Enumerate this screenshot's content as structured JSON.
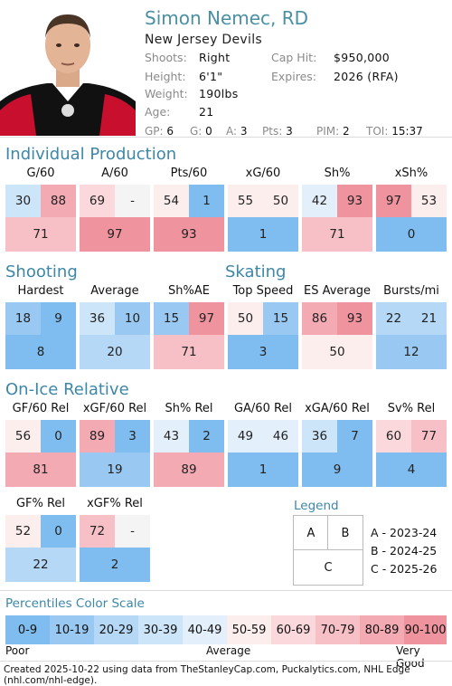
{
  "player": {
    "name": "Simon Nemec, RD",
    "team": "New Jersey Devils",
    "shoots_label": "Shoots:",
    "shoots": "Right",
    "height_label": "Height:",
    "height": "6'1\"",
    "weight_label": "Weight:",
    "weight": "190lbs",
    "age_label": "Age:",
    "age": "21",
    "cap_label": "Cap Hit:",
    "cap": "$950,000",
    "expires_label": "Expires:",
    "expires": "2026 (RFA)"
  },
  "stats": [
    {
      "k": "GP:",
      "v": "6"
    },
    {
      "k": "G:",
      "v": "0"
    },
    {
      "k": "A:",
      "v": "3"
    },
    {
      "k": "Pts:",
      "v": "3"
    },
    {
      "k": "PIM:",
      "v": "2"
    },
    {
      "k": "TOI:",
      "v": "15:37"
    }
  ],
  "sections": {
    "individual": "Individual Production",
    "shooting": "Shooting",
    "skating": "Skating",
    "onice": "On-Ice Relative",
    "legend": "Legend",
    "scale": "Percentiles Color Scale"
  },
  "colors": {
    "c0": "#7fbdf0",
    "c1": "#99c9f2",
    "c2": "#b4d8f6",
    "c3": "#cce5f9",
    "c4": "#e3f0fb",
    "c5": "#fdeeee",
    "c6": "#fbd8dc",
    "c7": "#f7c0c6",
    "c8": "#f3aab2",
    "c9": "#ef949e",
    "na": "#f4f4f4",
    "accent": "#3d87a8"
  },
  "metrics": [
    {
      "id": "g60",
      "label": "G/60",
      "a": "30",
      "b": "88",
      "c": "71"
    },
    {
      "id": "a60",
      "label": "A/60",
      "a": "69",
      "b": "-",
      "c": "97"
    },
    {
      "id": "pts60",
      "label": "Pts/60",
      "a": "54",
      "b": "1",
      "c": "93"
    },
    {
      "id": "xg60",
      "label": "xG/60",
      "a": "55",
      "b": "50",
      "c": "1"
    },
    {
      "id": "shp",
      "label": "Sh%",
      "a": "42",
      "b": "93",
      "c": "71"
    },
    {
      "id": "xshp",
      "label": "xSh%",
      "a": "97",
      "b": "53",
      "c": "0"
    },
    {
      "id": "hardest",
      "label": "Hardest",
      "a": "18",
      "b": "9",
      "c": "8"
    },
    {
      "id": "average",
      "label": "Average",
      "a": "36",
      "b": "10",
      "c": "20"
    },
    {
      "id": "shae",
      "label": "Sh%AE",
      "a": "15",
      "b": "97",
      "c": "71"
    },
    {
      "id": "topspeed",
      "label": "Top Speed",
      "a": "50",
      "b": "15",
      "c": "3"
    },
    {
      "id": "esavg",
      "label": "ES Average",
      "a": "86",
      "b": "93",
      "c": "50"
    },
    {
      "id": "bursts",
      "label": "Bursts/mi",
      "a": "22",
      "b": "21",
      "c": "12"
    },
    {
      "id": "gf60",
      "label": "GF/60 Rel",
      "a": "56",
      "b": "0",
      "c": "81"
    },
    {
      "id": "xgf60",
      "label": "xGF/60 Rel",
      "a": "89",
      "b": "3",
      "c": "19"
    },
    {
      "id": "shrel",
      "label": "Sh% Rel",
      "a": "43",
      "b": "2",
      "c": "89"
    },
    {
      "id": "ga60",
      "label": "GA/60 Rel",
      "a": "49",
      "b": "46",
      "c": "1"
    },
    {
      "id": "xga60",
      "label": "xGA/60 Rel",
      "a": "36",
      "b": "7",
      "c": "9"
    },
    {
      "id": "svrel",
      "label": "Sv% Rel",
      "a": "60",
      "b": "77",
      "c": "4"
    },
    {
      "id": "gfp",
      "label": "GF% Rel",
      "a": "52",
      "b": "0",
      "c": "22"
    },
    {
      "id": "xgfp",
      "label": "xGF% Rel",
      "a": "72",
      "b": "-",
      "c": "2"
    }
  ],
  "legend": {
    "a": "A",
    "b": "B",
    "c": "C",
    "a_text": "A - 2023-24",
    "b_text": "B - 2024-25",
    "c_text": "C - 2025-26"
  },
  "scale": {
    "ranges": [
      "0-9",
      "10-19",
      "20-29",
      "30-39",
      "40-49",
      "50-59",
      "60-69",
      "70-79",
      "80-89",
      "90-100"
    ],
    "poor": "Poor",
    "average": "Average",
    "very_good": "Very Good"
  },
  "footer": "Created 2025-10-22 using data from TheStanleyCap.com, Puckalytics.com, NHL Edge (nhl.com/nhl-edge)."
}
